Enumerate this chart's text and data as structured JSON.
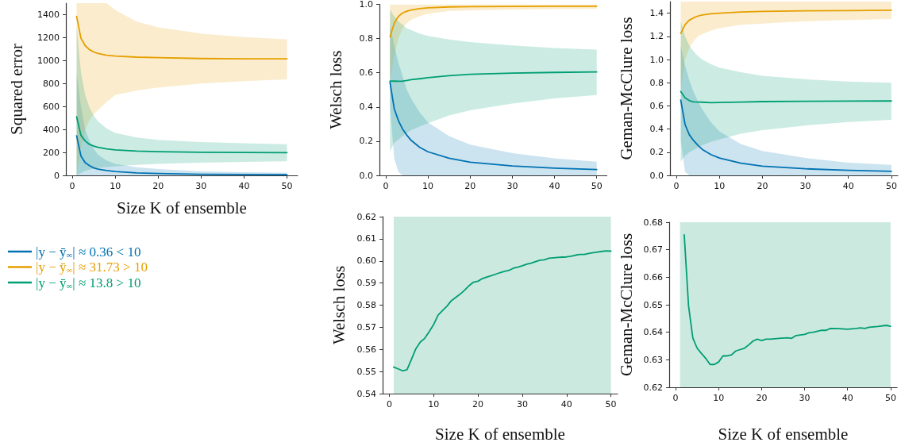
{
  "chart_data": [
    {
      "type": "line",
      "ylabel": "Squared error",
      "xlabel": "Size K of ensemble",
      "xlim": [
        -1.5,
        52.5
      ],
      "ylim": [
        0,
        1500
      ],
      "xticks": [
        0,
        10,
        20,
        30,
        40,
        50
      ],
      "yticks": [
        0,
        200,
        400,
        600,
        800,
        1000,
        1200,
        1400
      ],
      "legend": "bottom left",
      "x": [
        1,
        2,
        3,
        4,
        5,
        6,
        8,
        10,
        15,
        20,
        30,
        40,
        50
      ],
      "series": [
        {
          "name": "|y − ȳ$_{∞}$| ≈ 0.36 < 10",
          "color": "#0072b2",
          "values": [
            345,
            170,
            110,
            85,
            65,
            55,
            42,
            33,
            22,
            16,
            10,
            8,
            6
          ],
          "lower": [
            0,
            0,
            0,
            0,
            0,
            0,
            0,
            0,
            0,
            0,
            0,
            0,
            0
          ],
          "upper": [
            900,
            600,
            400,
            300,
            230,
            180,
            130,
            100,
            70,
            55,
            35,
            27,
            22
          ]
        },
        {
          "name": "|y − ȳ$_{∞}$| ≈ 31.73 > 10",
          "color": "#e69f00",
          "values": [
            1385,
            1195,
            1130,
            1095,
            1075,
            1062,
            1047,
            1040,
            1030,
            1025,
            1018,
            1015,
            1015
          ],
          "lower": [
            0,
            250,
            400,
            480,
            530,
            570,
            640,
            700,
            740,
            765,
            800,
            820,
            837
          ],
          "upper": [
            1500,
            1500,
            1500,
            1500,
            1500,
            1500,
            1500,
            1440,
            1340,
            1290,
            1235,
            1205,
            1185
          ]
        },
        {
          "name": "|y − ȳ$_{∞}$| ≈ 13.8 > 10",
          "color": "#009e73",
          "values": [
            510,
            350,
            300,
            270,
            255,
            245,
            230,
            222,
            212,
            207,
            202,
            200,
            198
          ],
          "lower": [
            0,
            20,
            40,
            50,
            60,
            65,
            72,
            80,
            92,
            100,
            110,
            118,
            122
          ],
          "upper": [
            1300,
            900,
            700,
            590,
            520,
            470,
            410,
            370,
            330,
            310,
            290,
            280,
            272
          ]
        }
      ]
    },
    {
      "type": "line",
      "ylabel": "Welsch loss",
      "xlim": [
        -1.5,
        52.5
      ],
      "ylim": [
        0,
        1
      ],
      "xticks": [
        0,
        10,
        20,
        30,
        40,
        50
      ],
      "yticks": [
        {
          "value": 0,
          "label": "0.0"
        },
        0.2,
        0.4,
        0.6,
        0.8,
        {
          "value": 1,
          "label": "1.0"
        }
      ],
      "x": [
        1,
        2,
        3,
        4,
        5,
        6,
        8,
        10,
        15,
        20,
        30,
        40,
        50
      ],
      "series": [
        {
          "color": "#0072b2",
          "values": [
            0.545,
            0.39,
            0.32,
            0.27,
            0.235,
            0.205,
            0.165,
            0.138,
            0.1,
            0.077,
            0.055,
            0.042,
            0.034
          ],
          "lower": [
            0.4,
            0.1,
            0.02,
            0,
            0,
            0,
            0,
            0,
            0,
            0,
            0,
            0,
            0
          ],
          "upper": [
            0.88,
            0.76,
            0.66,
            0.58,
            0.5,
            0.45,
            0.37,
            0.31,
            0.23,
            0.18,
            0.13,
            0.1,
            0.08
          ]
        },
        {
          "color": "#e69f00",
          "values": [
            0.81,
            0.89,
            0.93,
            0.95,
            0.96,
            0.967,
            0.975,
            0.98,
            0.985,
            0.987,
            0.988,
            0.989,
            0.989
          ],
          "lower": [
            0.55,
            0.7,
            0.8,
            0.86,
            0.89,
            0.91,
            0.93,
            0.945,
            0.96,
            0.965,
            0.97,
            0.973,
            0.975
          ],
          "upper": [
            1,
            1,
            1,
            1,
            1,
            1,
            1,
            1,
            1,
            1,
            1,
            1,
            1
          ]
        },
        {
          "color": "#009e73",
          "values": [
            0.552,
            0.551,
            0.55,
            0.551,
            0.555,
            0.56,
            0.565,
            0.571,
            0.583,
            0.591,
            0.598,
            0.602,
            0.605
          ],
          "lower": [
            0.14,
            0.19,
            0.21,
            0.23,
            0.25,
            0.265,
            0.285,
            0.305,
            0.35,
            0.38,
            0.42,
            0.45,
            0.47
          ],
          "upper": [
            0.97,
            0.93,
            0.9,
            0.88,
            0.86,
            0.85,
            0.83,
            0.815,
            0.795,
            0.78,
            0.76,
            0.745,
            0.735
          ]
        }
      ]
    },
    {
      "type": "line",
      "ylabel": "Geman-McClure loss",
      "xlim": [
        -1.5,
        51.5
      ],
      "ylim": [
        0,
        1.5
      ],
      "xticks": [
        0,
        10,
        20,
        30,
        40,
        50
      ],
      "yticks": [
        {
          "value": 0,
          "label": "0.0"
        },
        0.2,
        0.4,
        0.6,
        0.8,
        {
          "value": 1,
          "label": "1.0"
        },
        1.2,
        1.4
      ],
      "x": [
        1,
        2,
        3,
        4,
        5,
        6,
        8,
        10,
        15,
        20,
        30,
        40,
        50
      ],
      "series": [
        {
          "color": "#0072b2",
          "values": [
            0.65,
            0.44,
            0.35,
            0.3,
            0.26,
            0.225,
            0.18,
            0.15,
            0.105,
            0.08,
            0.057,
            0.043,
            0.035
          ],
          "lower": [
            0.3,
            0.03,
            0,
            0,
            0,
            0,
            0,
            0,
            0,
            0,
            0,
            0,
            0
          ],
          "upper": [
            1.12,
            0.95,
            0.82,
            0.72,
            0.64,
            0.57,
            0.46,
            0.38,
            0.27,
            0.21,
            0.15,
            0.11,
            0.09
          ]
        },
        {
          "color": "#e69f00",
          "values": [
            1.225,
            1.3,
            1.34,
            1.36,
            1.375,
            1.385,
            1.395,
            1.4,
            1.41,
            1.415,
            1.42,
            1.422,
            1.425
          ],
          "lower": [
            0.75,
            1,
            1.1,
            1.16,
            1.2,
            1.22,
            1.25,
            1.27,
            1.3,
            1.31,
            1.33,
            1.34,
            1.35
          ],
          "upper": [
            1.5,
            1.5,
            1.5,
            1.5,
            1.5,
            1.5,
            1.5,
            1.5,
            1.5,
            1.5,
            1.5,
            1.5,
            1.5
          ]
        },
        {
          "color": "#009e73",
          "values": [
            0.725,
            0.67,
            0.645,
            0.635,
            0.633,
            0.632,
            0.628,
            0.629,
            0.633,
            0.637,
            0.639,
            0.641,
            0.642
          ],
          "lower": [
            0.12,
            0.17,
            0.2,
            0.22,
            0.24,
            0.26,
            0.29,
            0.31,
            0.36,
            0.39,
            0.43,
            0.46,
            0.48
          ],
          "upper": [
            1.33,
            1.2,
            1.12,
            1.07,
            1.03,
            1,
            0.96,
            0.93,
            0.89,
            0.86,
            0.83,
            0.81,
            0.8
          ]
        }
      ]
    },
    {
      "type": "line",
      "ylabel": "Welsch loss",
      "xlabel": "Size K of ensemble",
      "xlim": [
        -1.5,
        51.5
      ],
      "ylim": [
        0.54,
        0.62
      ],
      "xticks": [
        0,
        10,
        20,
        30,
        40,
        50
      ],
      "yticks": [
        0.54,
        0.55,
        0.56,
        0.57,
        0.58,
        0.59,
        {
          "value": 0.6,
          "label": "0.60"
        },
        0.61,
        0.62
      ],
      "bands": [
        {
          "axis": "x",
          "from": 1,
          "to": 50,
          "color": "#cce9e0"
        }
      ],
      "series": [
        {
          "color": "#009e73",
          "x": [
            1,
            2,
            3,
            4,
            5,
            6,
            7,
            8,
            9,
            10,
            11,
            12,
            13,
            14,
            15,
            16,
            17,
            18,
            19,
            20,
            21,
            22,
            23,
            24,
            25,
            26,
            27,
            28,
            29,
            30,
            31,
            32,
            33,
            34,
            35,
            36,
            37,
            38,
            39,
            40,
            41,
            42,
            43,
            44,
            45,
            46,
            47,
            48,
            49,
            50
          ],
          "values": [
            0.552,
            0.5512,
            0.5503,
            0.5508,
            0.5555,
            0.5603,
            0.5633,
            0.565,
            0.568,
            0.5712,
            0.5755,
            0.5775,
            0.5795,
            0.582,
            0.5835,
            0.585,
            0.5868,
            0.5888,
            0.5904,
            0.5908,
            0.592,
            0.5927,
            0.5933,
            0.594,
            0.5947,
            0.5953,
            0.5957,
            0.5967,
            0.5972,
            0.5978,
            0.5985,
            0.599,
            0.5997,
            0.6003,
            0.6005,
            0.6012,
            0.6014,
            0.6016,
            0.6017,
            0.6018,
            0.6021,
            0.6026,
            0.6029,
            0.6029,
            0.6034,
            0.6037,
            0.604,
            0.6043,
            0.6045,
            0.6044
          ]
        }
      ]
    },
    {
      "type": "line",
      "ylabel": "Geman-McClure loss",
      "xlabel": "Size K of ensemble",
      "xlim": [
        -1.5,
        51.5
      ],
      "ylim": [
        0.62,
        0.68
      ],
      "xticks": [
        0,
        10,
        20,
        30,
        40,
        50
      ],
      "yticks": [
        0.62,
        0.63,
        0.64,
        0.65,
        0.66,
        0.67,
        0.68
      ],
      "bands": [
        {
          "axis": "x",
          "from": 1,
          "to": 50,
          "color": "#cce9e0"
        }
      ],
      "series": [
        {
          "color": "#009e73",
          "x": [
            2,
            3,
            4,
            5,
            6,
            7,
            8,
            9,
            10,
            11,
            12,
            13,
            14,
            15,
            16,
            17,
            18,
            19,
            20,
            21,
            22,
            24,
            26,
            27,
            28,
            30,
            31,
            32,
            34,
            35,
            36,
            38,
            40,
            42,
            43,
            44,
            45,
            47,
            49,
            50
          ],
          "values": [
            0.6754,
            0.6496,
            0.6379,
            0.6342,
            0.6323,
            0.6305,
            0.6283,
            0.6283,
            0.6292,
            0.6314,
            0.6314,
            0.6318,
            0.6332,
            0.6337,
            0.6342,
            0.6354,
            0.6368,
            0.6375,
            0.637,
            0.6375,
            0.6375,
            0.6378,
            0.638,
            0.6378,
            0.6388,
            0.6392,
            0.6398,
            0.64,
            0.6407,
            0.6407,
            0.6414,
            0.6413,
            0.6411,
            0.6414,
            0.6416,
            0.6414,
            0.6418,
            0.6421,
            0.6425,
            0.6422
          ]
        }
      ]
    }
  ]
}
